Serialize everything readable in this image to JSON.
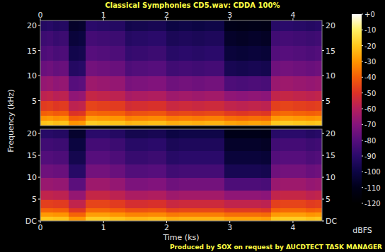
{
  "title": "Classical Symphonies CD5.wav: CDDA 100%",
  "footer": "Produced by SOX on request by AUCDTECT TASK MANAGER",
  "x_label": "Time (ks)",
  "y_label": "Frequency (kHz)",
  "colorbar": {
    "label": "dBFS",
    "range": [
      -120,
      0
    ],
    "ticks": [
      {
        "value": 0,
        "label": "+0"
      },
      -10,
      -20,
      -30,
      -40,
      -50,
      -60,
      -70,
      -80,
      -90,
      -100,
      -110,
      -120
    ]
  },
  "chart_data": [
    {
      "type": "heatmap",
      "xlim": [
        0,
        4.46
      ],
      "ylim": [
        0,
        21
      ],
      "xticks": [
        0,
        1,
        2,
        3,
        4
      ],
      "yticks": [
        5,
        10,
        15,
        20
      ],
      "x_bins": [
        0,
        0.1,
        0.2,
        0.3,
        0.45,
        0.6,
        0.72,
        0.9,
        1.1,
        1.35,
        1.45,
        1.7,
        2.0,
        2.2,
        2.4,
        2.6,
        2.91,
        3.1,
        3.3,
        3.5,
        3.65,
        3.8,
        4.0,
        4.2,
        4.35,
        4.46
      ],
      "y_bins": [
        0,
        1,
        2,
        3,
        5,
        7,
        10,
        13,
        16,
        19,
        21
      ],
      "cells": [
        [
          -21,
          -20,
          -22,
          -21,
          -30,
          -29,
          -19,
          -20,
          -21,
          -24,
          -23,
          -22,
          -25,
          -24,
          -25,
          -24,
          -27,
          -28,
          -27,
          -28,
          -20,
          -19,
          -20,
          -21,
          -20
        ],
        [
          -30,
          -29,
          -31,
          -30,
          -40,
          -39,
          -28,
          -29,
          -30,
          -34,
          -33,
          -32,
          -35,
          -34,
          -35,
          -34,
          -37,
          -38,
          -37,
          -38,
          -29,
          -28,
          -29,
          -30,
          -29
        ],
        [
          -40,
          -39,
          -41,
          -40,
          -50,
          -49,
          -38,
          -39,
          -40,
          -44,
          -43,
          -42,
          -46,
          -45,
          -46,
          -45,
          -48,
          -49,
          -48,
          -49,
          -39,
          -38,
          -39,
          -40,
          -39
        ],
        [
          -48,
          -47,
          -49,
          -48,
          -58,
          -57,
          -46,
          -47,
          -48,
          -53,
          -52,
          -51,
          -55,
          -54,
          -55,
          -54,
          -57,
          -58,
          -57,
          -58,
          -47,
          -46,
          -47,
          -48,
          -47
        ],
        [
          -58,
          -57,
          -59,
          -58,
          -68,
          -67,
          -56,
          -57,
          -58,
          -63,
          -62,
          -61,
          -65,
          -64,
          -65,
          -64,
          -68,
          -69,
          -68,
          -69,
          -57,
          -56,
          -57,
          -58,
          -57
        ],
        [
          -67,
          -66,
          -68,
          -67,
          -80,
          -79,
          -65,
          -66,
          -67,
          -73,
          -72,
          -71,
          -75,
          -74,
          -75,
          -74,
          -82,
          -83,
          -82,
          -83,
          -66,
          -65,
          -66,
          -67,
          -66
        ],
        [
          -76,
          -75,
          -77,
          -76,
          -92,
          -91,
          -74,
          -75,
          -76,
          -82,
          -81,
          -80,
          -85,
          -84,
          -85,
          -84,
          -96,
          -97,
          -96,
          -97,
          -75,
          -74,
          -75,
          -76,
          -75
        ],
        [
          -82,
          -81,
          -83,
          -82,
          -98,
          -97,
          -80,
          -81,
          -82,
          -88,
          -87,
          -86,
          -91,
          -90,
          -91,
          -90,
          -102,
          -103,
          -102,
          -103,
          -81,
          -80,
          -81,
          -82,
          -81
        ],
        [
          -86,
          -85,
          -87,
          -86,
          -102,
          -101,
          -84,
          -85,
          -86,
          -92,
          -91,
          -90,
          -95,
          -94,
          -95,
          -94,
          -106,
          -107,
          -106,
          -107,
          -85,
          -84,
          -85,
          -86,
          -85
        ],
        [
          -92,
          -91,
          -93,
          -92,
          -106,
          -105,
          -90,
          -91,
          -92,
          -98,
          -97,
          -96,
          -100,
          -99,
          -100,
          -99,
          -110,
          -111,
          -110,
          -111,
          -91,
          -90,
          -91,
          -92,
          -91
        ]
      ]
    },
    {
      "type": "heatmap",
      "xlim": [
        0,
        4.46
      ],
      "ylim": [
        0,
        21
      ],
      "xticks": [
        0,
        1,
        2,
        3,
        4
      ],
      "yticks": [
        {
          "value": 0,
          "label": "DC"
        },
        5,
        10,
        15,
        20
      ],
      "x_bins": [
        0,
        0.1,
        0.2,
        0.3,
        0.45,
        0.6,
        0.72,
        0.9,
        1.1,
        1.35,
        1.45,
        1.7,
        2.0,
        2.2,
        2.4,
        2.6,
        2.91,
        3.1,
        3.3,
        3.5,
        3.65,
        3.8,
        4.0,
        4.2,
        4.35,
        4.46
      ],
      "y_bins": [
        0,
        1,
        2,
        3,
        5,
        7,
        10,
        13,
        16,
        19,
        21
      ],
      "cells": [
        [
          -20,
          -20,
          -21,
          -21,
          -29,
          -29,
          -19,
          -19,
          -21,
          -23,
          -23,
          -22,
          -25,
          -24,
          -24,
          -24,
          -27,
          -27,
          -27,
          -28,
          -20,
          -19,
          -19,
          -21,
          -20
        ],
        [
          -29,
          -29,
          -30,
          -30,
          -39,
          -39,
          -28,
          -28,
          -30,
          -33,
          -33,
          -32,
          -35,
          -34,
          -34,
          -34,
          -37,
          -37,
          -37,
          -38,
          -29,
          -28,
          -28,
          -30,
          -29
        ],
        [
          -39,
          -39,
          -40,
          -40,
          -49,
          -49,
          -38,
          -38,
          -40,
          -43,
          -43,
          -42,
          -46,
          -45,
          -45,
          -45,
          -48,
          -48,
          -48,
          -49,
          -39,
          -38,
          -38,
          -40,
          -39
        ],
        [
          -47,
          -47,
          -48,
          -48,
          -57,
          -57,
          -46,
          -46,
          -48,
          -52,
          -52,
          -51,
          -55,
          -54,
          -54,
          -54,
          -57,
          -57,
          -57,
          -58,
          -47,
          -46,
          -46,
          -48,
          -47
        ],
        [
          -57,
          -57,
          -58,
          -58,
          -67,
          -67,
          -56,
          -56,
          -58,
          -62,
          -62,
          -61,
          -65,
          -64,
          -64,
          -64,
          -68,
          -68,
          -68,
          -69,
          -57,
          -56,
          -56,
          -58,
          -57
        ],
        [
          -66,
          -66,
          -67,
          -67,
          -79,
          -79,
          -65,
          -65,
          -67,
          -72,
          -72,
          -71,
          -75,
          -74,
          -74,
          -74,
          -82,
          -82,
          -82,
          -83,
          -66,
          -65,
          -65,
          -67,
          -66
        ],
        [
          -75,
          -75,
          -76,
          -76,
          -91,
          -91,
          -74,
          -74,
          -76,
          -81,
          -81,
          -80,
          -85,
          -84,
          -84,
          -84,
          -96,
          -96,
          -96,
          -97,
          -75,
          -74,
          -74,
          -76,
          -75
        ],
        [
          -81,
          -81,
          -82,
          -82,
          -97,
          -97,
          -80,
          -80,
          -82,
          -87,
          -87,
          -86,
          -91,
          -90,
          -90,
          -90,
          -102,
          -102,
          -102,
          -103,
          -81,
          -80,
          -80,
          -82,
          -81
        ],
        [
          -85,
          -85,
          -86,
          -86,
          -101,
          -101,
          -84,
          -84,
          -86,
          -91,
          -91,
          -90,
          -95,
          -94,
          -94,
          -94,
          -106,
          -106,
          -106,
          -107,
          -85,
          -84,
          -84,
          -86,
          -85
        ],
        [
          -91,
          -91,
          -92,
          -92,
          -105,
          -105,
          -90,
          -90,
          -92,
          -97,
          -97,
          -96,
          -100,
          -99,
          -99,
          -99,
          -110,
          -110,
          -110,
          -111,
          -91,
          -90,
          -90,
          -92,
          -91
        ]
      ]
    }
  ]
}
